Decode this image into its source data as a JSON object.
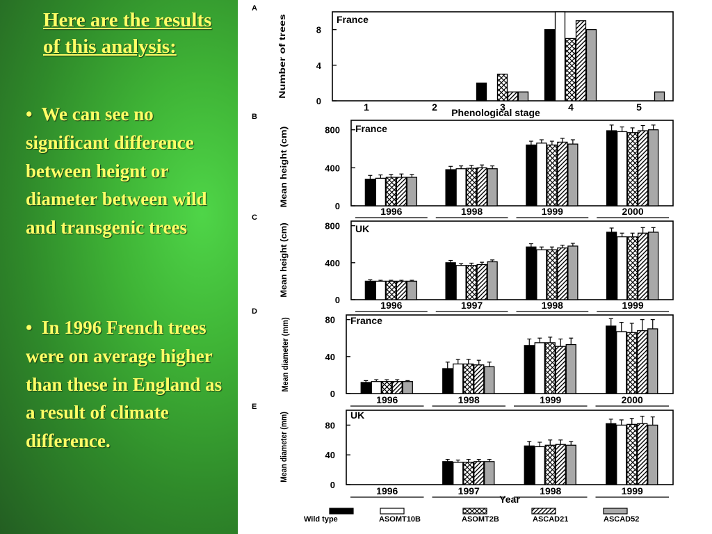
{
  "slide": {
    "title": "Here are the results of this analysis:",
    "bullets": [
      "We can see no significant difference between heignt or diameter between wild and transgenic trees",
      "In 1996 French trees were on average higher than these in England as a result of climate difference."
    ],
    "background_color": "#3fb436",
    "text_color": "#ffff66"
  },
  "legend": {
    "items": [
      {
        "name": "Wild type",
        "pattern": "solid-black"
      },
      {
        "name": "ASOMT10B",
        "pattern": "white"
      },
      {
        "name": "ASOMT2B",
        "pattern": "crosshatch"
      },
      {
        "name": "ASCAD21",
        "pattern": "diagonal"
      },
      {
        "name": "ASCAD52",
        "pattern": "gray"
      }
    ],
    "placement": "bottom"
  },
  "shared_xlabel": "Year",
  "chart_data": [
    {
      "panel": "A",
      "type": "bar",
      "region": "France",
      "xlabel": "Phenological stage",
      "ylabel": "Number of trees",
      "categories": [
        "1",
        "2",
        "3",
        "4",
        "5"
      ],
      "ylim": [
        0,
        10
      ],
      "yticks": [
        0,
        4,
        8
      ],
      "series": [
        {
          "name": "Wild type",
          "values": [
            0,
            0,
            2,
            8,
            0
          ]
        },
        {
          "name": "ASOMT10B",
          "values": [
            0,
            0,
            0,
            10,
            0
          ]
        },
        {
          "name": "ASOMT2B",
          "values": [
            0,
            0,
            3,
            7,
            0
          ]
        },
        {
          "name": "ASCAD21",
          "values": [
            0,
            0,
            1,
            9,
            0
          ]
        },
        {
          "name": "ASCAD52",
          "values": [
            0,
            0,
            1,
            8,
            1
          ]
        }
      ]
    },
    {
      "panel": "B",
      "type": "bar",
      "region": "France",
      "ylabel": "Mean height (cm)",
      "categories": [
        "1996",
        "1998",
        "1999",
        "2000"
      ],
      "ylim": [
        0,
        900
      ],
      "yticks": [
        0,
        400,
        800
      ],
      "series": [
        {
          "name": "Wild type",
          "values": [
            280,
            380,
            640,
            790
          ],
          "errors": [
            40,
            35,
            40,
            60
          ]
        },
        {
          "name": "ASOMT10B",
          "values": [
            290,
            390,
            660,
            780
          ],
          "errors": [
            35,
            30,
            35,
            50
          ]
        },
        {
          "name": "ASOMT2B",
          "values": [
            300,
            395,
            640,
            770
          ],
          "errors": [
            30,
            30,
            40,
            50
          ]
        },
        {
          "name": "ASCAD21",
          "values": [
            300,
            400,
            670,
            790
          ],
          "errors": [
            35,
            30,
            40,
            55
          ]
        },
        {
          "name": "ASCAD52",
          "values": [
            300,
            390,
            650,
            800
          ],
          "errors": [
            30,
            30,
            45,
            50
          ]
        }
      ]
    },
    {
      "panel": "C",
      "type": "bar",
      "region": "UK",
      "ylabel": "Mean height (cm)",
      "categories": [
        "1996",
        "1997",
        "1998",
        "1999"
      ],
      "ylim": [
        0,
        850
      ],
      "yticks": [
        0,
        400,
        800
      ],
      "series": [
        {
          "name": "Wild type",
          "values": [
            200,
            400,
            570,
            730
          ],
          "errors": [
            15,
            25,
            35,
            45
          ]
        },
        {
          "name": "ASOMT10B",
          "values": [
            200,
            370,
            540,
            680
          ],
          "errors": [
            10,
            20,
            30,
            40
          ]
        },
        {
          "name": "ASOMT2B",
          "values": [
            200,
            370,
            540,
            680
          ],
          "errors": [
            10,
            25,
            30,
            40
          ]
        },
        {
          "name": "ASCAD21",
          "values": [
            200,
            380,
            560,
            720
          ],
          "errors": [
            10,
            25,
            30,
            60
          ]
        },
        {
          "name": "ASCAD52",
          "values": [
            200,
            410,
            580,
            730
          ],
          "errors": [
            10,
            20,
            30,
            50
          ]
        }
      ]
    },
    {
      "panel": "D",
      "type": "bar",
      "region": "France",
      "ylabel": "Mean diameter (mm)",
      "categories": [
        "1996",
        "1998",
        "1999",
        "2000"
      ],
      "ylim": [
        0,
        85
      ],
      "yticks": [
        0,
        40,
        80
      ],
      "series": [
        {
          "name": "Wild type",
          "values": [
            12,
            27,
            52,
            73
          ],
          "errors": [
            2,
            7,
            7,
            8
          ]
        },
        {
          "name": "ASOMT10B",
          "values": [
            13,
            32,
            55,
            67
          ],
          "errors": [
            2,
            5,
            5,
            10
          ]
        },
        {
          "name": "ASOMT2B",
          "values": [
            13,
            32,
            55,
            66
          ],
          "errors": [
            2,
            5,
            6,
            10
          ]
        },
        {
          "name": "ASCAD21",
          "values": [
            13,
            31,
            51,
            68
          ],
          "errors": [
            2,
            5,
            8,
            12
          ]
        },
        {
          "name": "ASCAD52",
          "values": [
            13,
            29,
            53,
            70
          ],
          "errors": [
            1,
            5,
            7,
            10
          ]
        }
      ]
    },
    {
      "panel": "E",
      "type": "bar",
      "region": "UK",
      "ylabel": "Mean diameter (mm)",
      "categories": [
        "1996",
        "1997",
        "1998",
        "1999"
      ],
      "ylim": [
        0,
        100
      ],
      "yticks": [
        0,
        40,
        80
      ],
      "series": [
        {
          "name": "Wild type",
          "values": [
            0,
            31,
            52,
            82
          ],
          "errors": [
            0,
            3,
            6,
            6
          ]
        },
        {
          "name": "ASOMT10B",
          "values": [
            0,
            30,
            51,
            80
          ],
          "errors": [
            0,
            3,
            6,
            7
          ]
        },
        {
          "name": "ASOMT2B",
          "values": [
            0,
            30,
            53,
            81
          ],
          "errors": [
            0,
            4,
            7,
            8
          ]
        },
        {
          "name": "ASCAD21",
          "values": [
            0,
            31,
            54,
            82
          ],
          "errors": [
            0,
            3,
            6,
            10
          ]
        },
        {
          "name": "ASCAD52",
          "values": [
            0,
            31,
            53,
            80
          ],
          "errors": [
            0,
            3,
            5,
            11
          ]
        }
      ]
    }
  ]
}
